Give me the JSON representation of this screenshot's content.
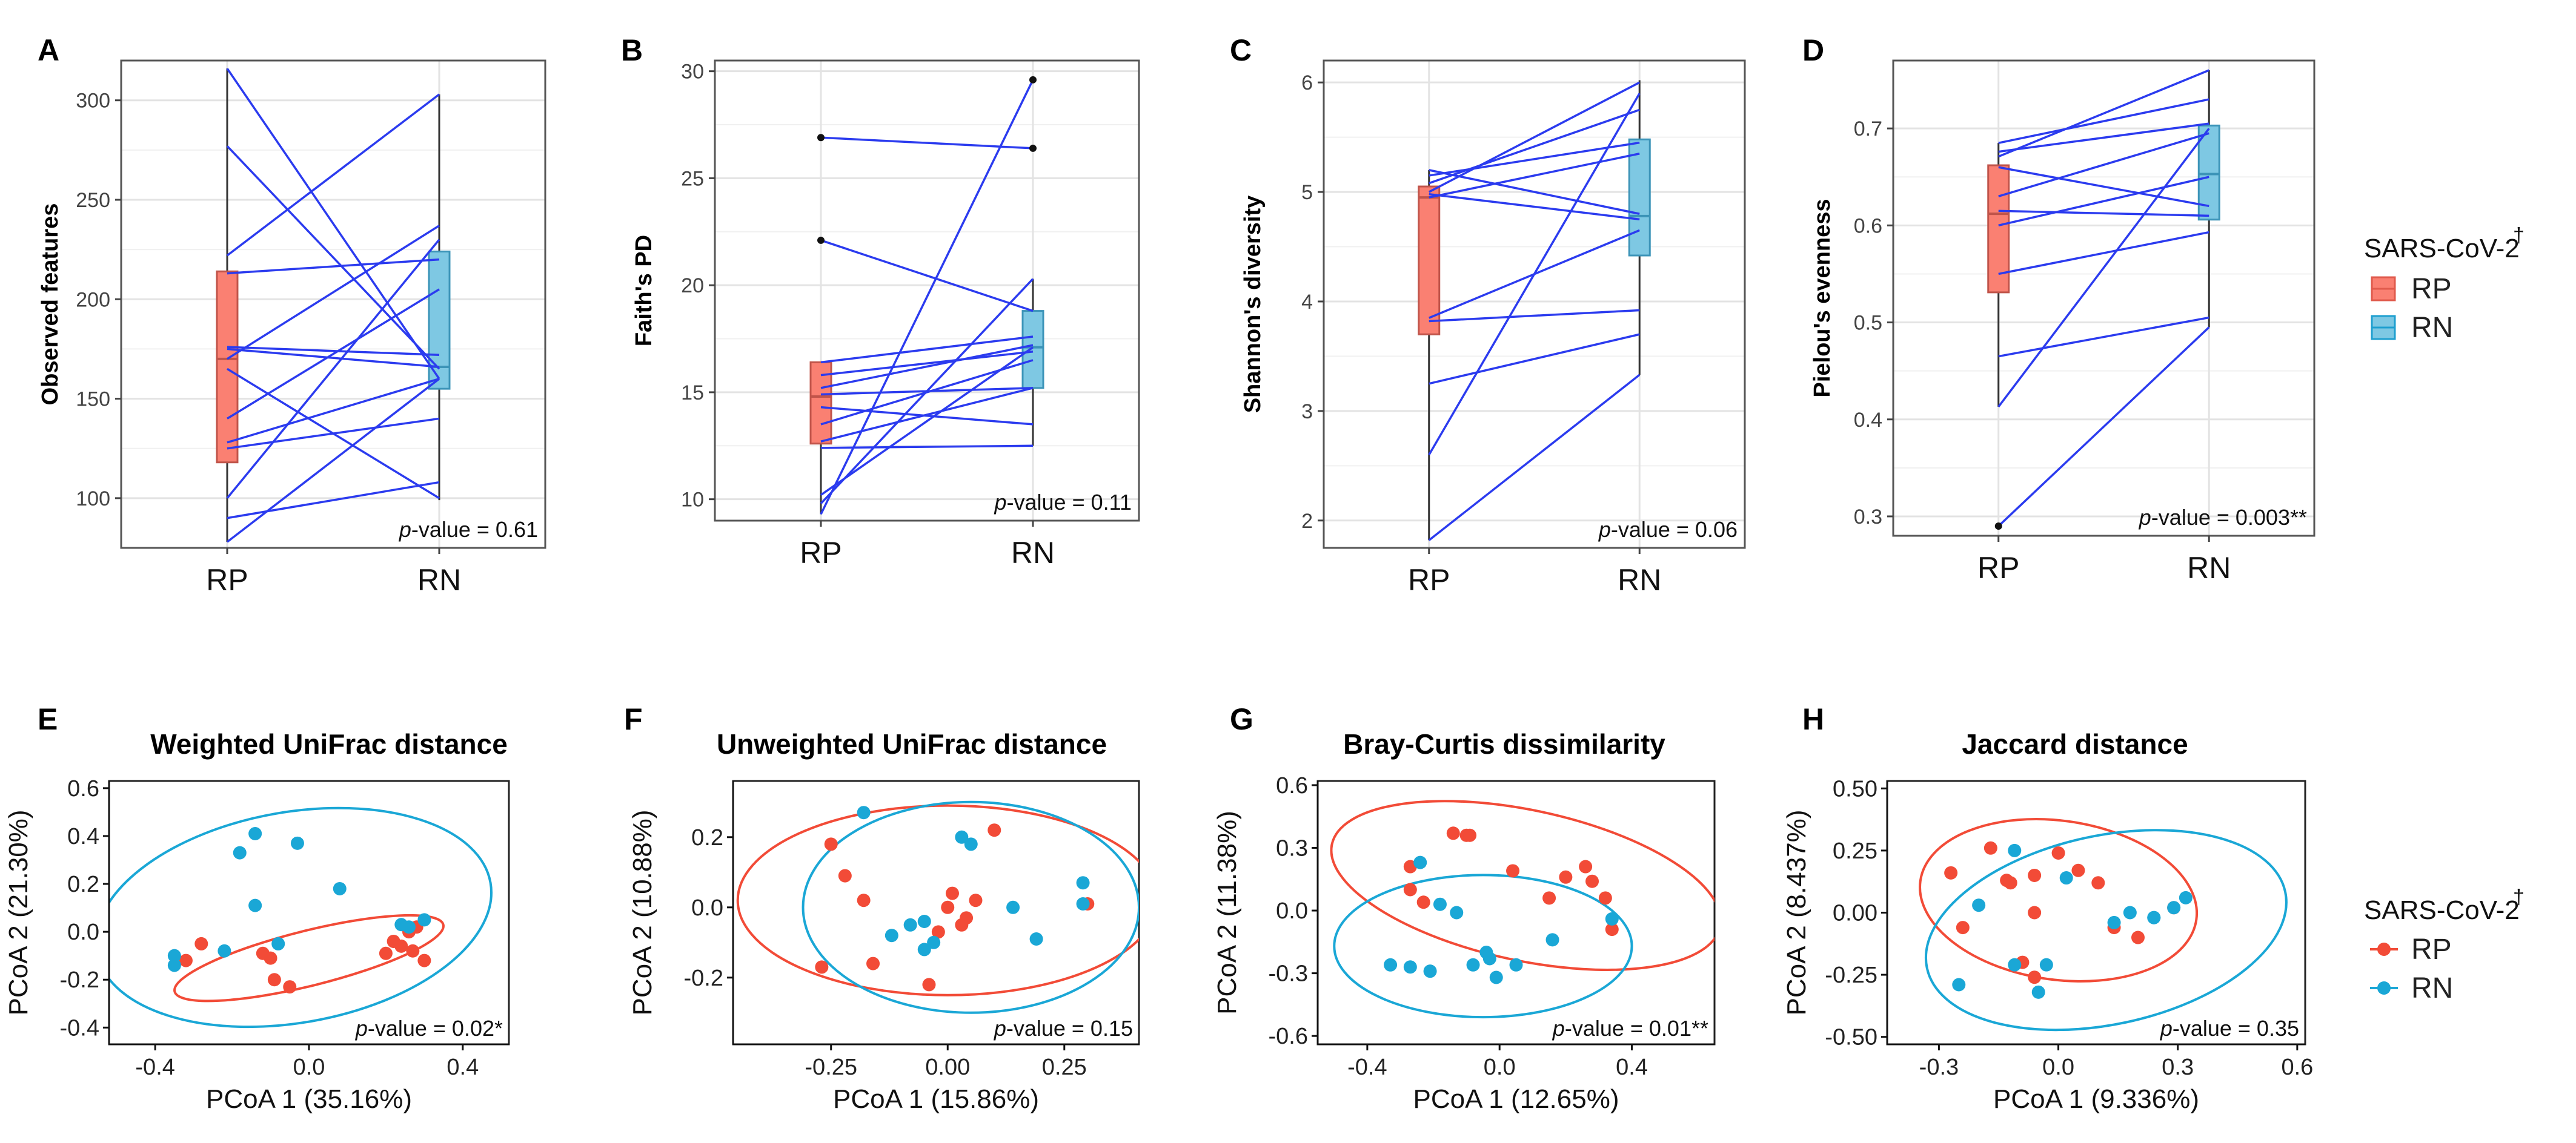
{
  "colors": {
    "rp": "#F8766D",
    "rn": "#00A9E0",
    "line": "#2B3BEF",
    "ellipse_rp": "#F24B37",
    "ellipse_rn": "#1AA7D6",
    "box_rp": "#FA8072",
    "box_rn": "#7EC8E3"
  },
  "legend_top": {
    "title": "SARS-CoV-2",
    "dagger": "†",
    "items": [
      {
        "label": "RP",
        "color": "#FA8072"
      },
      {
        "label": "RN",
        "color": "#7EC8E3"
      }
    ]
  },
  "legend_bottom": {
    "title": "SARS-CoV-2",
    "dagger": "†",
    "items": [
      {
        "label": "RP",
        "color": "#F24B37"
      },
      {
        "label": "RN",
        "color": "#1AA7D6"
      }
    ]
  },
  "chart_data": [
    {
      "panel": "A",
      "type": "box-paired",
      "ylabel": "Observed features",
      "categories": [
        "RP",
        "RN"
      ],
      "ylim": [
        75,
        320
      ],
      "yticks": [
        100,
        150,
        200,
        250,
        300
      ],
      "yticklabels": [
        "100",
        "150",
        "200",
        "250",
        "300"
      ],
      "pvalue_prefix": "p",
      "pvalue_text": "-value = 0.61",
      "boxes": [
        {
          "q1": 118,
          "median": 170,
          "q3": 214,
          "min": 78,
          "max": 316
        },
        {
          "q1": 155,
          "median": 166,
          "q3": 224,
          "min": 99,
          "max": 303
        }
      ],
      "pairs": [
        [
          316,
          160
        ],
        [
          277,
          165
        ],
        [
          222,
          303
        ],
        [
          213,
          220
        ],
        [
          176,
          172
        ],
        [
          175,
          166
        ],
        [
          170,
          237
        ],
        [
          165,
          100
        ],
        [
          140,
          205
        ],
        [
          128,
          160
        ],
        [
          125,
          140
        ],
        [
          100,
          230
        ],
        [
          90,
          108
        ],
        [
          78,
          160
        ]
      ],
      "outliers": []
    },
    {
      "panel": "B",
      "type": "box-paired",
      "ylabel": "Faith's PD",
      "categories": [
        "RP",
        "RN"
      ],
      "ylim": [
        9,
        30.5
      ],
      "yticks": [
        10,
        15,
        20,
        25,
        30
      ],
      "yticklabels": [
        "10",
        "15",
        "20",
        "25",
        "30"
      ],
      "pvalue_prefix": "p",
      "pvalue_text": "-value = 0.11",
      "boxes": [
        {
          "q1": 12.6,
          "median": 14.8,
          "q3": 16.4,
          "min": 9.3,
          "max": 16.4
        },
        {
          "q1": 15.2,
          "median": 17.1,
          "q3": 18.8,
          "min": 12.5,
          "max": 20.3
        }
      ],
      "pairs": [
        [
          26.9,
          26.4
        ],
        [
          22.1,
          18.8
        ],
        [
          16.4,
          17.6
        ],
        [
          15.8,
          16.9
        ],
        [
          15.2,
          17.2
        ],
        [
          14.9,
          15.2
        ],
        [
          14.3,
          13.5
        ],
        [
          13.5,
          16.5
        ],
        [
          12.7,
          15.2
        ],
        [
          12.4,
          12.5
        ],
        [
          10.2,
          17.1
        ],
        [
          9.8,
          20.3
        ],
        [
          9.3,
          29.6
        ]
      ],
      "outliers": [
        {
          "group": 0,
          "y": 26.9
        },
        {
          "group": 0,
          "y": 22.1
        },
        {
          "group": 1,
          "y": 26.4
        },
        {
          "group": 1,
          "y": 29.6
        }
      ]
    },
    {
      "panel": "C",
      "type": "box-paired",
      "ylabel": "Shannon's diversity",
      "categories": [
        "RP",
        "RN"
      ],
      "ylim": [
        1.75,
        6.2
      ],
      "yticks": [
        2,
        3,
        4,
        5,
        6
      ],
      "yticklabels": [
        "2",
        "3",
        "4",
        "5",
        "6"
      ],
      "pvalue_prefix": "p",
      "pvalue_text": "-value = 0.06",
      "boxes": [
        {
          "q1": 3.7,
          "median": 4.95,
          "q3": 5.05,
          "min": 1.82,
          "max": 5.2
        },
        {
          "q1": 4.42,
          "median": 4.78,
          "q3": 5.48,
          "min": 3.33,
          "max": 6.02
        }
      ],
      "pairs": [
        [
          5.2,
          4.8
        ],
        [
          5.15,
          5.45
        ],
        [
          5.08,
          5.75
        ],
        [
          5.0,
          6.0
        ],
        [
          4.98,
          4.75
        ],
        [
          4.95,
          5.35
        ],
        [
          3.85,
          4.65
        ],
        [
          3.82,
          3.92
        ],
        [
          3.25,
          3.7
        ],
        [
          2.6,
          5.9
        ],
        [
          1.82,
          3.33
        ]
      ],
      "outliers": []
    },
    {
      "panel": "D",
      "type": "box-paired",
      "ylabel": "Pielou's evenness",
      "categories": [
        "RP",
        "RN"
      ],
      "ylim": [
        0.28,
        0.77
      ],
      "yticks": [
        0.3,
        0.4,
        0.5,
        0.6,
        0.7
      ],
      "yticklabels": [
        "0.3",
        "0.4",
        "0.5",
        "0.6",
        "0.7"
      ],
      "pvalue_prefix": "p",
      "pvalue_text": "-value = 0.003**",
      "boxes": [
        {
          "q1": 0.531,
          "median": 0.612,
          "q3": 0.662,
          "min": 0.413,
          "max": 0.685
        },
        {
          "q1": 0.606,
          "median": 0.653,
          "q3": 0.703,
          "min": 0.495,
          "max": 0.76
        }
      ],
      "pairs": [
        [
          0.685,
          0.73
        ],
        [
          0.676,
          0.705
        ],
        [
          0.671,
          0.76
        ],
        [
          0.66,
          0.62
        ],
        [
          0.63,
          0.695
        ],
        [
          0.615,
          0.61
        ],
        [
          0.6,
          0.65
        ],
        [
          0.55,
          0.593
        ],
        [
          0.465,
          0.505
        ],
        [
          0.413,
          0.7
        ],
        [
          0.29,
          0.495
        ]
      ],
      "outliers": [
        {
          "group": 0,
          "y": 0.29
        }
      ]
    },
    {
      "panel": "E",
      "type": "scatter",
      "title": "Weighted UniFrac distance",
      "xlabel": "PCoA 1 (35.16%)",
      "ylabel": "PCoA 2 (21.30%)",
      "xlim": [
        -0.52,
        0.52
      ],
      "ylim": [
        -0.47,
        0.63
      ],
      "xticks": [
        -0.4,
        0.0,
        0.4
      ],
      "xticklabels": [
        "-0.4",
        "0.0",
        "0.4"
      ],
      "yticks": [
        -0.4,
        -0.2,
        0.0,
        0.2,
        0.4,
        0.6
      ],
      "yticklabels": [
        "-0.4",
        "-0.2",
        "0.0",
        "0.2",
        "0.4",
        "0.6"
      ],
      "pvalue_prefix": "p",
      "pvalue_text": "-value = 0.02*",
      "series": [
        {
          "name": "RP",
          "points": [
            [
              -0.32,
              -0.12
            ],
            [
              -0.28,
              -0.05
            ],
            [
              -0.12,
              -0.09
            ],
            [
              -0.1,
              -0.11
            ],
            [
              -0.09,
              -0.2
            ],
            [
              -0.05,
              -0.23
            ],
            [
              0.22,
              -0.04
            ],
            [
              0.24,
              -0.06
            ],
            [
              0.26,
              0.0
            ],
            [
              0.27,
              -0.08
            ],
            [
              0.28,
              0.02
            ],
            [
              0.3,
              -0.12
            ],
            [
              0.2,
              -0.09
            ]
          ]
        },
        {
          "name": "RN",
          "points": [
            [
              -0.35,
              -0.1
            ],
            [
              -0.35,
              -0.14
            ],
            [
              -0.22,
              -0.08
            ],
            [
              -0.18,
              0.33
            ],
            [
              -0.14,
              0.41
            ],
            [
              -0.14,
              0.11
            ],
            [
              -0.03,
              0.37
            ],
            [
              0.08,
              0.18
            ],
            [
              0.24,
              0.03
            ],
            [
              0.26,
              0.02
            ],
            [
              0.3,
              0.05
            ],
            [
              -0.08,
              -0.05
            ]
          ]
        }
      ],
      "ellipses": [
        {
          "group": "RP",
          "cx": 0.0,
          "cy": -0.11,
          "rx": 0.36,
          "ry": 0.115,
          "angle": 14
        },
        {
          "group": "RN",
          "cx": -0.04,
          "cy": 0.06,
          "rx": 0.52,
          "ry": 0.44,
          "angle": 10
        }
      ]
    },
    {
      "panel": "F",
      "type": "scatter",
      "title": "Unweighted UniFrac distance",
      "xlabel": "PCoA 1 (15.86%)",
      "ylabel": "PCoA 2 (10.88%)",
      "xlim": [
        -0.46,
        0.41
      ],
      "ylim": [
        -0.39,
        0.36
      ],
      "xticks": [
        -0.25,
        0.0,
        0.25
      ],
      "xticklabels": [
        "-0.25",
        "0.00",
        "0.25"
      ],
      "yticks": [
        -0.2,
        0.0,
        0.2
      ],
      "yticklabels": [
        "-0.2",
        "0.0",
        "0.2"
      ],
      "pvalue_prefix": "p",
      "pvalue_text": "-value = 0.15",
      "series": [
        {
          "name": "RP",
          "points": [
            [
              -0.25,
              0.18
            ],
            [
              -0.22,
              0.09
            ],
            [
              -0.18,
              0.02
            ],
            [
              -0.27,
              -0.17
            ],
            [
              -0.16,
              -0.16
            ],
            [
              -0.04,
              -0.22
            ],
            [
              -0.02,
              -0.07
            ],
            [
              0.01,
              0.04
            ],
            [
              0.03,
              -0.05
            ],
            [
              0.06,
              0.02
            ],
            [
              0.1,
              0.22
            ],
            [
              0.04,
              -0.03
            ],
            [
              0.3,
              0.01
            ],
            [
              0.0,
              0.0
            ]
          ]
        },
        {
          "name": "RN",
          "points": [
            [
              -0.18,
              0.27
            ],
            [
              -0.12,
              -0.08
            ],
            [
              -0.08,
              -0.05
            ],
            [
              -0.05,
              -0.04
            ],
            [
              -0.03,
              -0.1
            ],
            [
              0.03,
              0.2
            ],
            [
              0.05,
              0.18
            ],
            [
              0.14,
              0.0
            ],
            [
              0.19,
              -0.09
            ],
            [
              0.29,
              0.07
            ],
            [
              0.29,
              0.01
            ],
            [
              -0.05,
              -0.12
            ]
          ]
        }
      ],
      "ellipses": [
        {
          "group": "RP",
          "cx": 0.0,
          "cy": 0.02,
          "rx": 0.45,
          "ry": 0.27,
          "angle": 0
        },
        {
          "group": "RN",
          "cx": 0.05,
          "cy": 0.0,
          "rx": 0.36,
          "ry": 0.3,
          "angle": 0
        }
      ]
    },
    {
      "panel": "G",
      "type": "scatter",
      "title": "Bray-Curtis dissimilarity",
      "xlabel": "PCoA 1 (12.65%)",
      "ylabel": "PCoA 2 (11.38%)",
      "xlim": [
        -0.55,
        0.65
      ],
      "ylim": [
        -0.64,
        0.62
      ],
      "xticks": [
        -0.4,
        0.0,
        0.4
      ],
      "xticklabels": [
        "-0.4",
        "0.0",
        "0.4"
      ],
      "yticks": [
        -0.6,
        -0.3,
        0.0,
        0.3,
        0.6
      ],
      "yticklabels": [
        "-0.6",
        "-0.3",
        "0.0",
        "0.3",
        "0.6"
      ],
      "pvalue_prefix": "p",
      "pvalue_text": "-value = 0.01**",
      "series": [
        {
          "name": "RP",
          "points": [
            [
              -0.27,
              0.21
            ],
            [
              -0.14,
              0.37
            ],
            [
              -0.1,
              0.36
            ],
            [
              -0.09,
              0.36
            ],
            [
              0.04,
              0.19
            ],
            [
              0.15,
              0.06
            ],
            [
              0.26,
              0.21
            ],
            [
              0.28,
              0.14
            ],
            [
              0.32,
              0.06
            ],
            [
              0.34,
              -0.09
            ],
            [
              -0.27,
              0.1
            ],
            [
              -0.23,
              0.04
            ],
            [
              0.2,
              0.16
            ]
          ]
        },
        {
          "name": "RN",
          "points": [
            [
              -0.33,
              -0.26
            ],
            [
              -0.27,
              -0.27
            ],
            [
              -0.21,
              -0.29
            ],
            [
              -0.18,
              0.03
            ],
            [
              -0.13,
              -0.01
            ],
            [
              -0.08,
              -0.26
            ],
            [
              -0.04,
              -0.2
            ],
            [
              -0.01,
              -0.32
            ],
            [
              0.05,
              -0.26
            ],
            [
              0.16,
              -0.14
            ],
            [
              0.34,
              -0.04
            ],
            [
              -0.03,
              -0.23
            ],
            [
              -0.24,
              0.23
            ]
          ]
        }
      ],
      "ellipses": [
        {
          "group": "RP",
          "cx": 0.08,
          "cy": 0.12,
          "rx": 0.6,
          "ry": 0.36,
          "angle": -12
        },
        {
          "group": "RN",
          "cx": -0.05,
          "cy": -0.17,
          "rx": 0.45,
          "ry": 0.34,
          "angle": 0
        }
      ]
    },
    {
      "panel": "H",
      "type": "scatter",
      "title": "Jaccard distance",
      "xlabel": "PCoA 1 (9.336%)",
      "ylabel": "PCoA 2 (8.437%)",
      "xlim": [
        -0.43,
        0.62
      ],
      "ylim": [
        -0.53,
        0.53
      ],
      "xticks": [
        -0.3,
        0.0,
        0.3,
        0.6
      ],
      "xticklabels": [
        "-0.3",
        "0.0",
        "0.3",
        "0.6"
      ],
      "yticks": [
        -0.5,
        -0.25,
        0.0,
        0.25,
        0.5
      ],
      "yticklabels": [
        "-0.50",
        "-0.25",
        "0.00",
        "0.25",
        "0.50"
      ],
      "pvalue_prefix": "p",
      "pvalue_text": "-value = 0.35",
      "series": [
        {
          "name": "RP",
          "points": [
            [
              -0.27,
              0.16
            ],
            [
              -0.24,
              -0.06
            ],
            [
              -0.17,
              0.26
            ],
            [
              -0.13,
              0.13
            ],
            [
              -0.12,
              0.12
            ],
            [
              -0.06,
              0.0
            ],
            [
              -0.06,
              0.15
            ],
            [
              0.0,
              0.24
            ],
            [
              0.05,
              0.17
            ],
            [
              0.1,
              0.12
            ],
            [
              0.14,
              -0.06
            ],
            [
              0.2,
              -0.1
            ],
            [
              0.29,
              0.02
            ],
            [
              -0.09,
              -0.2
            ],
            [
              -0.06,
              -0.26
            ]
          ]
        },
        {
          "name": "RN",
          "points": [
            [
              -0.25,
              -0.29
            ],
            [
              -0.2,
              0.03
            ],
            [
              -0.11,
              0.25
            ],
            [
              -0.11,
              -0.21
            ],
            [
              -0.05,
              -0.32
            ],
            [
              -0.03,
              -0.21
            ],
            [
              0.02,
              0.14
            ],
            [
              0.14,
              -0.04
            ],
            [
              0.18,
              0.0
            ],
            [
              0.24,
              -0.02
            ],
            [
              0.29,
              0.02
            ],
            [
              0.32,
              0.06
            ],
            [
              0.24,
              -0.02
            ]
          ]
        }
      ],
      "ellipses": [
        {
          "group": "RP",
          "cx": 0.0,
          "cy": 0.05,
          "rx": 0.35,
          "ry": 0.32,
          "angle": -8
        },
        {
          "group": "RN",
          "cx": 0.12,
          "cy": -0.07,
          "rx": 0.46,
          "ry": 0.38,
          "angle": 12
        }
      ]
    }
  ]
}
